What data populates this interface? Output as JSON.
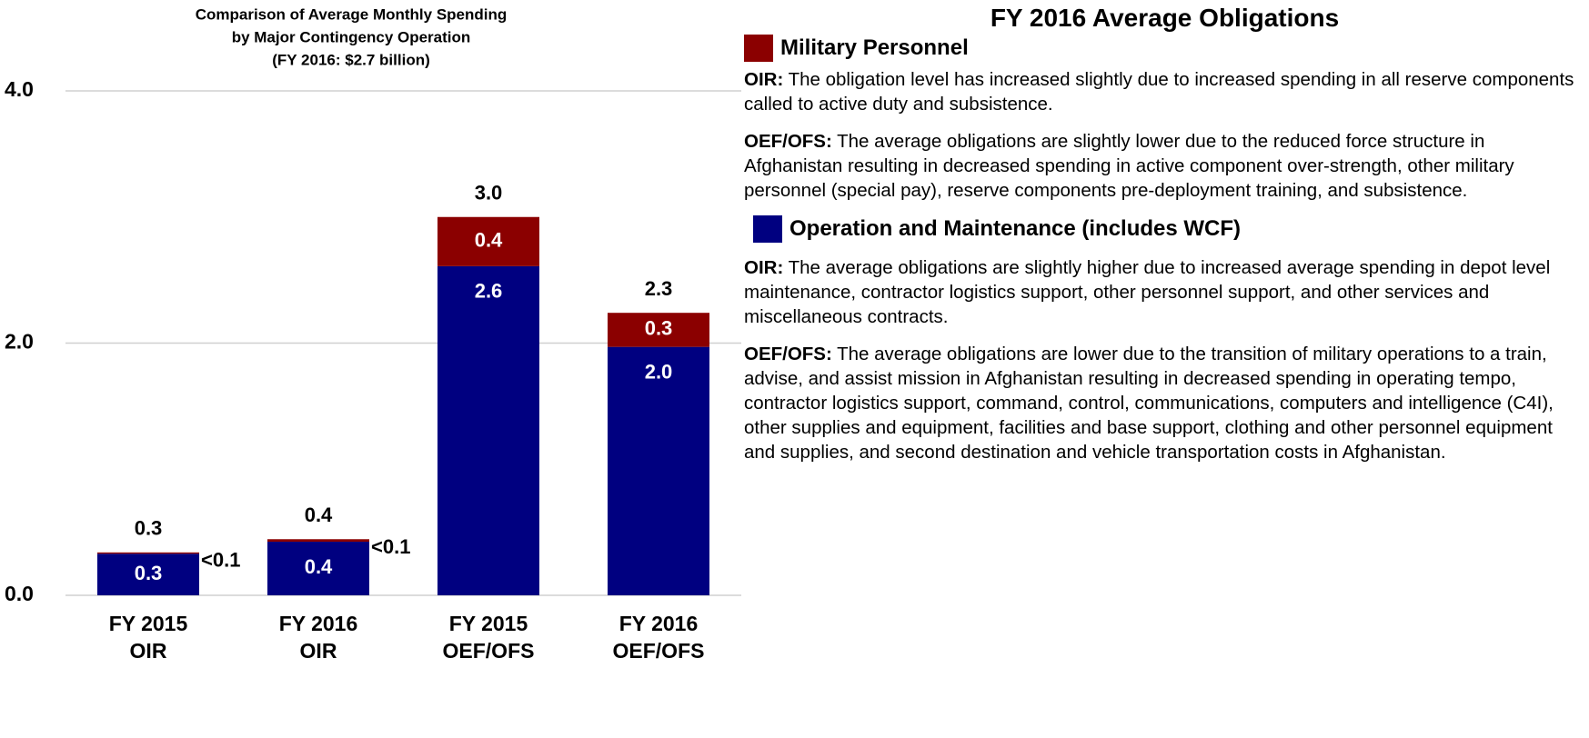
{
  "chart_data": {
    "type": "stacked-bar",
    "title": [
      "Comparison of Average Monthly Spending",
      "by Major Contingency Operation",
      "(FY 2016:  $2.7 billion)"
    ],
    "categories": [
      [
        "FY 2015",
        "OIR"
      ],
      [
        "FY 2016",
        "OIR"
      ],
      [
        "FY 2015",
        "OEF/OFS"
      ],
      [
        "FY 2016",
        "OEF/OFS"
      ]
    ],
    "series": [
      {
        "name": "Operation and Maintenance (includes WCF)",
        "color": "#000080",
        "values": [
          0.33,
          0.425,
          2.61,
          1.97
        ],
        "value_labels": [
          "0.3",
          "0.4",
          "2.6",
          "2.0"
        ],
        "notes": [
          {
            "lead": "OIR:",
            "text": " The average obligations are slightly higher due to increased average spending in depot level maintenance, contractor logistics support, other personnel support, and other services and miscellaneous contracts."
          },
          {
            "lead": "OEF/OFS:",
            "text": "  The average obligations are lower due to the transition of military operations to a train, advise, and assist mission in Afghanistan resulting in decreased spending in operating tempo, contractor logistics support, command, control, communications, computers and intelligence (C4I), other supplies and equipment, facilities and base support, clothing and other personnel equipment and supplies, and second destination and vehicle transportation costs in Afghanistan."
          }
        ]
      },
      {
        "name": "Military Personnel",
        "color": "#8b0000",
        "values": [
          0.01,
          0.02,
          0.39,
          0.27
        ],
        "value_labels": [
          "<0.1",
          "<0.1",
          "0.4",
          "0.3"
        ],
        "notes": [
          {
            "lead": "OIR:",
            "text": "  The obligation level has increased slightly due to increased spending in all reserve components called to active duty and subsistence."
          },
          {
            "lead": "OEF/OFS:",
            "text": "   The average obligations are slightly lower due to the reduced force structure in Afghanistan resulting in decreased spending in active component over-strength, other military personnel (special pay), reserve components pre-deployment training, and subsistence."
          }
        ]
      }
    ],
    "total_labels": [
      "0.3",
      "0.4",
      "3.0",
      "2.3"
    ],
    "ylim": [
      0,
      4
    ],
    "yticks": [
      {
        "value": 0,
        "label": "0.0"
      },
      {
        "value": 2,
        "label": "2.0"
      },
      {
        "value": 4,
        "label": "4.0"
      }
    ],
    "grid": true,
    "legend_title": "FY 2016 Average Obligations"
  }
}
